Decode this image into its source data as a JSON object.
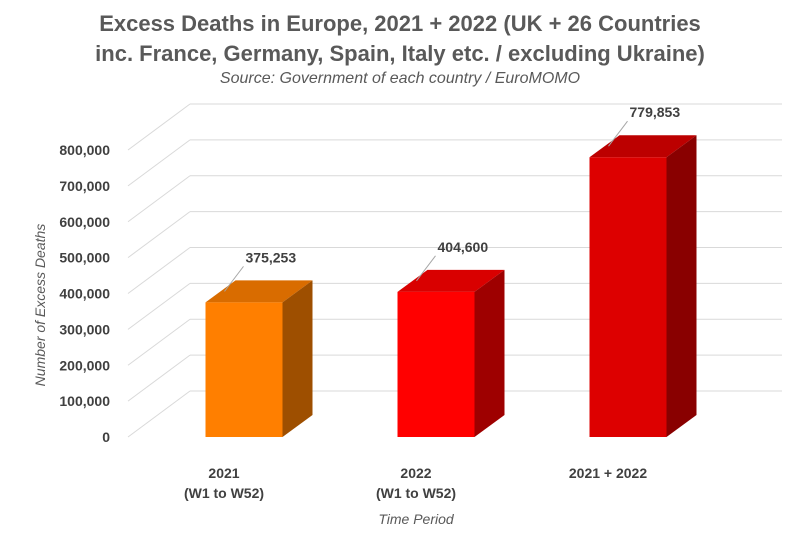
{
  "chart_data": {
    "type": "bar",
    "title_line1": "Excess Deaths in Europe, 2021 + 2022 (UK + 26 Countries",
    "title_line2": "inc. France, Germany, Spain, Italy etc. / excluding Ukraine)",
    "subtitle": "Source: Government of each country / EuroMOMO",
    "xlabel": "Time Period",
    "ylabel": "Number of Excess Deaths",
    "categories": [
      [
        "2021",
        "(W1 to W52)"
      ],
      [
        "2022",
        "(W1 to W52)"
      ],
      [
        "2021 + 2022"
      ]
    ],
    "values": [
      375253,
      404600,
      779853
    ],
    "value_labels": [
      "375,253",
      "404,600",
      "779,853"
    ],
    "ylim": [
      0,
      800000
    ],
    "yticks": [
      0,
      100000,
      200000,
      300000,
      400000,
      500000,
      600000,
      700000,
      800000
    ],
    "ytick_labels": [
      "0",
      "100,000",
      "200,000",
      "300,000",
      "400,000",
      "500,000",
      "600,000",
      "700,000",
      "800,000"
    ],
    "grid": true,
    "colors": {
      "bars": [
        "#ff7f00",
        "#ff0000",
        "#dd0000"
      ],
      "grid": "#d9d9d9",
      "text": "#404040"
    }
  }
}
